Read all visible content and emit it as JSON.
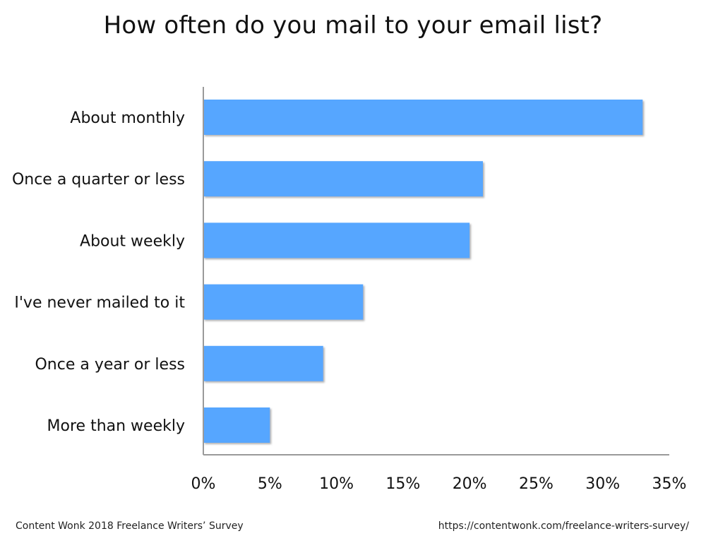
{
  "chart_data": {
    "type": "bar",
    "orientation": "horizontal",
    "title": "How often do you mail to your email list?",
    "categories": [
      "About monthly",
      "Once a quarter or less",
      "About weekly",
      "I've never mailed to it",
      "Once a year or less",
      "More than weekly"
    ],
    "values": [
      33,
      21,
      20,
      12,
      9,
      5
    ],
    "xlabel": "",
    "ylabel": "",
    "xlim": [
      0,
      35
    ],
    "x_ticks": [
      0,
      5,
      10,
      15,
      20,
      25,
      30,
      35
    ],
    "x_tick_labels": [
      "0%",
      "5%",
      "10%",
      "15%",
      "20%",
      "25%",
      "30%",
      "35%"
    ],
    "grid": false,
    "legend": "none",
    "bar_color": "#56a6ff",
    "bar_shadow_color": "#b8b8b8",
    "axis_color": "#9a9a9a"
  },
  "footer": {
    "source": "Content Wonk 2018 Freelance Writers’ Survey",
    "url": "https://contentwonk.com/freelance-writers-survey/"
  }
}
